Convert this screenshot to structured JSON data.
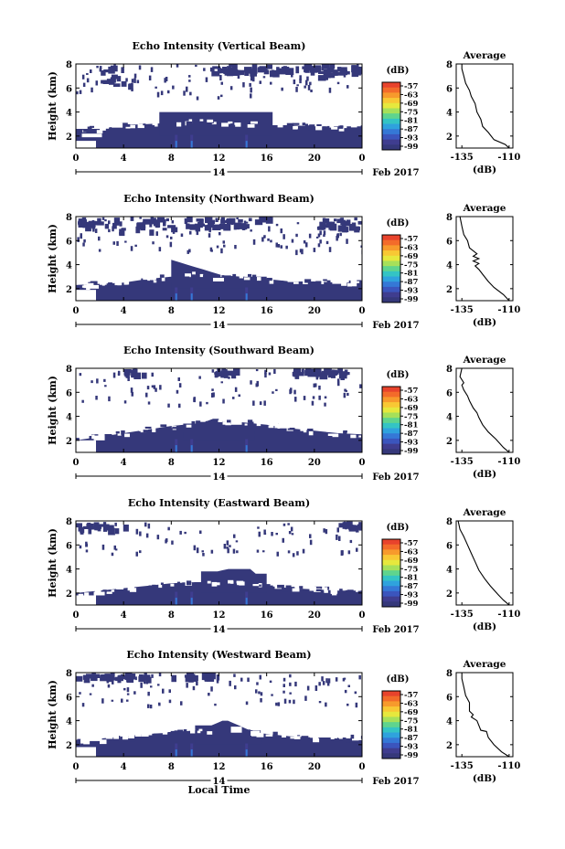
{
  "chart_data": {
    "type": "heatmap",
    "date_label": "Feb 2017",
    "day_label": "14",
    "xlabel": "Local Time",
    "ylabel": "Height (km)",
    "x_ticks": [
      "0",
      "4",
      "8",
      "12",
      "16",
      "20",
      "0"
    ],
    "y_ticks": [
      "2",
      "4",
      "6",
      "8"
    ],
    "xlim": [
      0,
      24
    ],
    "ylim": [
      1,
      8
    ],
    "colorbar": {
      "unit": "(dB)",
      "ticks": [
        "-57",
        "-63",
        "-69",
        "-75",
        "-81",
        "-87",
        "-93",
        "-99"
      ],
      "colors": [
        "#e8432c",
        "#f36b2a",
        "#f79a2c",
        "#f8c834",
        "#e6e83d",
        "#a6e05a",
        "#5fd48e",
        "#34c4c4",
        "#2fa2dd",
        "#3578d6",
        "#3b55bd",
        "#3f3d8f",
        "#35387a"
      ]
    },
    "avg_panel": {
      "title": "Average",
      "xlabel": "(dB)",
      "x_ticks": [
        "-135",
        "-110"
      ],
      "y_ticks": [
        "2",
        "4",
        "6",
        "8"
      ],
      "xlim": [
        -138,
        -108
      ]
    },
    "panels": [
      {
        "title": "Echo Intensity (Vertical Beam)",
        "base_top": [
          2.6,
          2.6,
          2.9,
          3.0,
          3.1,
          3.2,
          3.1,
          3.0,
          2.9,
          2.9,
          2.8,
          2.8,
          2.8
        ],
        "lower_holes": [
          [
            0,
            1.0,
            1.6
          ],
          [
            0.5,
            1.9,
            2.2
          ],
          [
            3.0,
            2.7,
            3.1
          ]
        ],
        "cloud_top": [
          4.0,
          4.0,
          4.0,
          4.0,
          4.0,
          4.0,
          4.0,
          4.0,
          4.0,
          4.0,
          4.0,
          4.0,
          4.0
        ],
        "cloud_start": 7,
        "cloud_end": 16.5,
        "upper": [
          [
            2.0,
            4.5,
            6.3,
            8.0
          ],
          [
            11.0,
            17.5,
            7.4,
            8.0
          ],
          [
            17.5,
            21.0,
            7.0,
            8.0
          ],
          [
            21.0,
            24.0,
            7.3,
            8.0
          ]
        ],
        "speck_seed": 11,
        "speck_count": 90,
        "speck_band": [
          5.2,
          8.0
        ],
        "profile": [
          [
            -110,
            1.0
          ],
          [
            -112,
            1.3
          ],
          [
            -118,
            1.7
          ],
          [
            -121,
            2.3
          ],
          [
            -124,
            2.8
          ],
          [
            -125,
            3.4
          ],
          [
            -127,
            4.0
          ],
          [
            -128,
            4.7
          ],
          [
            -130,
            5.3
          ],
          [
            -131,
            5.8
          ],
          [
            -133,
            6.4
          ],
          [
            -134,
            7.0
          ],
          [
            -135,
            7.6
          ],
          [
            -135,
            8.0
          ]
        ]
      },
      {
        "title": "Echo Intensity (Northward Beam)",
        "base_top": [
          2.3,
          2.4,
          2.5,
          2.8,
          3.0,
          3.2,
          3.1,
          3.0,
          2.8,
          2.6,
          2.6,
          2.5,
          2.5
        ],
        "lower_holes": [
          [
            0,
            1.0,
            1.9
          ],
          [
            1.0,
            2.0,
            2.3
          ],
          [
            11.5,
            2.6,
            2.9
          ],
          [
            21.5,
            2.4,
            2.7
          ]
        ],
        "cloud_top": [
          4.4,
          4.2,
          4.0,
          3.8,
          3.6,
          3.4,
          3.2,
          3.0,
          3.0,
          3.0,
          3.0,
          3.0,
          3.0
        ],
        "cloud_start": 8,
        "cloud_end": 16,
        "upper": [
          [
            0.0,
            2.5,
            7.3,
            8.0
          ],
          [
            3.0,
            8.0,
            6.8,
            8.0
          ],
          [
            9.0,
            16.0,
            7.3,
            8.0
          ],
          [
            20.0,
            24.0,
            7.1,
            8.0
          ]
        ],
        "speck_seed": 23,
        "speck_count": 110,
        "speck_band": [
          5.2,
          8.0
        ],
        "profile": [
          [
            -110,
            1.0
          ],
          [
            -113,
            1.5
          ],
          [
            -118,
            2.1
          ],
          [
            -121,
            2.6
          ],
          [
            -124,
            3.2
          ],
          [
            -126,
            3.6
          ],
          [
            -128,
            3.9
          ],
          [
            -126,
            4.1
          ],
          [
            -129,
            4.3
          ],
          [
            -126,
            4.5
          ],
          [
            -129,
            4.7
          ],
          [
            -127,
            4.9
          ],
          [
            -131,
            5.4
          ],
          [
            -132,
            6.0
          ],
          [
            -134,
            6.5
          ],
          [
            -135,
            7.2
          ],
          [
            -136,
            8.0
          ]
        ]
      },
      {
        "title": "Echo Intensity (Southward Beam)",
        "base_top": [
          2.0,
          2.3,
          2.6,
          2.9,
          3.2,
          3.4,
          3.6,
          3.5,
          3.3,
          3.0,
          2.8,
          2.6,
          2.5
        ],
        "lower_holes": [
          [
            0,
            1.0,
            2.0
          ],
          [
            1.5,
            2.0,
            2.4
          ],
          [
            13.0,
            3.3,
            3.8
          ],
          [
            17.0,
            3.0,
            3.4
          ],
          [
            21.0,
            2.7,
            3.0
          ]
        ],
        "cloud_top": [
          3.4,
          3.4,
          3.4,
          3.4,
          3.6,
          3.8,
          3.8,
          3.6,
          3.4,
          3.2,
          3.0,
          3.0,
          3.0
        ],
        "cloud_start": 9,
        "cloud_end": 15,
        "upper": [
          [
            4.0,
            6.0,
            7.6,
            8.0
          ],
          [
            11.5,
            13.5,
            7.5,
            8.0
          ],
          [
            18.0,
            23.0,
            7.6,
            8.0
          ]
        ],
        "speck_seed": 37,
        "speck_count": 85,
        "speck_band": [
          5.0,
          8.0
        ],
        "profile": [
          [
            -110,
            1.0
          ],
          [
            -113,
            1.4
          ],
          [
            -117,
            2.1
          ],
          [
            -121,
            2.7
          ],
          [
            -124,
            3.3
          ],
          [
            -126,
            3.9
          ],
          [
            -127,
            4.3
          ],
          [
            -129,
            4.7
          ],
          [
            -131,
            5.3
          ],
          [
            -132,
            5.7
          ],
          [
            -134,
            6.2
          ],
          [
            -135,
            6.6
          ],
          [
            -134,
            6.8
          ],
          [
            -136,
            7.3
          ],
          [
            -135,
            8.0
          ]
        ]
      },
      {
        "title": "Echo Intensity (Eastward Beam)",
        "base_top": [
          2.0,
          2.2,
          2.4,
          2.6,
          2.8,
          2.9,
          2.9,
          2.8,
          2.6,
          2.4,
          2.3,
          2.2,
          2.2
        ],
        "lower_holes": [
          [
            0,
            1.0,
            1.8
          ],
          [
            1.5,
            1.8,
            2.1
          ],
          [
            16.5,
            3.2,
            4.0
          ]
        ],
        "cloud_top": [
          3.8,
          3.8,
          3.8,
          3.8,
          3.9,
          4.0,
          4.0,
          4.0,
          4.0,
          4.0,
          3.6,
          3.6,
          3.6
        ],
        "cloud_start": 10.5,
        "cloud_end": 16,
        "upper": [
          [
            0.0,
            4.0,
            7.3,
            8.0
          ],
          [
            22.0,
            24.0,
            7.6,
            8.0
          ]
        ],
        "speck_seed": 53,
        "speck_count": 75,
        "speck_band": [
          5.3,
          8.0
        ],
        "profile": [
          [
            -110,
            1.0
          ],
          [
            -113,
            1.4
          ],
          [
            -116,
            1.9
          ],
          [
            -120,
            2.6
          ],
          [
            -123,
            3.2
          ],
          [
            -126,
            3.9
          ],
          [
            -128,
            4.6
          ],
          [
            -130,
            5.3
          ],
          [
            -132,
            6.0
          ],
          [
            -134,
            6.7
          ],
          [
            -136,
            7.3
          ],
          [
            -137,
            8.0
          ]
        ]
      },
      {
        "title": "Echo Intensity (Westward Beam)",
        "base_top": [
          2.4,
          2.5,
          2.7,
          2.9,
          3.0,
          3.2,
          3.2,
          3.1,
          2.9,
          2.7,
          2.6,
          2.6,
          2.6
        ],
        "lower_holes": [
          [
            0,
            1.0,
            1.8
          ],
          [
            0.5,
            2.3,
            2.6
          ],
          [
            13.0,
            3.0,
            3.5
          ],
          [
            18.0,
            2.8,
            3.1
          ]
        ],
        "cloud_top": [
          3.6,
          3.6,
          3.6,
          3.6,
          3.8,
          4.0,
          4.0,
          3.8,
          3.6,
          3.4,
          3.2,
          3.2,
          3.2
        ],
        "cloud_start": 10,
        "cloud_end": 15.5,
        "upper": [
          [
            0.0,
            6.0,
            7.6,
            8.0
          ],
          [
            8.0,
            12.0,
            7.7,
            8.0
          ]
        ],
        "speck_seed": 71,
        "speck_count": 90,
        "speck_band": [
          5.3,
          8.0
        ],
        "profile": [
          [
            -110,
            1.0
          ],
          [
            -114,
            1.4
          ],
          [
            -118,
            2.0
          ],
          [
            -121,
            2.6
          ],
          [
            -122,
            3.1
          ],
          [
            -125,
            3.2
          ],
          [
            -126,
            3.6
          ],
          [
            -127,
            4.0
          ],
          [
            -130,
            4.3
          ],
          [
            -129,
            4.5
          ],
          [
            -131,
            4.8
          ],
          [
            -131,
            5.5
          ],
          [
            -133,
            6.1
          ],
          [
            -134,
            6.8
          ],
          [
            -135,
            7.5
          ],
          [
            -135,
            8.0
          ]
        ]
      }
    ]
  }
}
